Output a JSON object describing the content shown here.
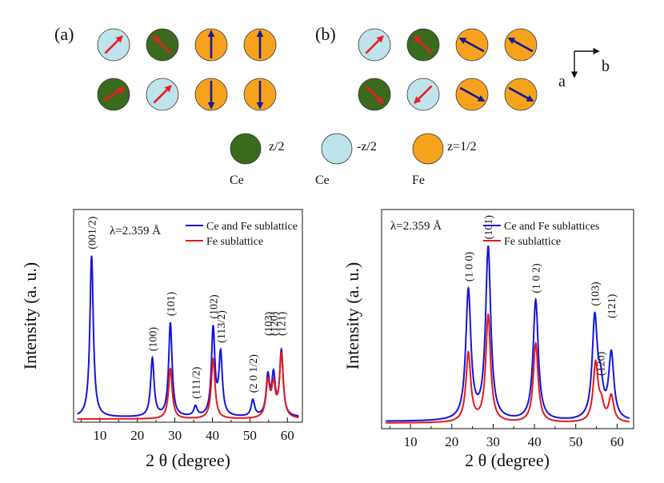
{
  "colors": {
    "ce_up": "#3a6b1c",
    "ce_down": "#bfe3ea",
    "fe": "#f7a21d",
    "ce_arrow": "#ee1c25",
    "fe_arrow": "#1a1a8c",
    "total_curve": "#1414e0",
    "fe_curve": "#e31a1c"
  },
  "structures": {
    "panel_a": {
      "label": "(a)",
      "rows": [
        [
          {
            "atom": "ce_down",
            "arrow": "red",
            "dir": [
              1,
              -1
            ]
          },
          {
            "atom": "ce_up",
            "arrow": "red",
            "dir": [
              -1,
              -1
            ]
          },
          {
            "atom": "fe",
            "arrow": "blue",
            "dir": [
              0,
              -1
            ]
          },
          {
            "atom": "fe",
            "arrow": "blue",
            "dir": [
              0,
              -1
            ]
          }
        ],
        [
          {
            "atom": "ce_up",
            "arrow": "red",
            "dir": [
              1,
              -0.6
            ]
          },
          {
            "atom": "ce_down",
            "arrow": "red",
            "dir": [
              1,
              -1
            ]
          },
          {
            "atom": "fe",
            "arrow": "blue",
            "dir": [
              0,
              1
            ]
          },
          {
            "atom": "fe",
            "arrow": "blue",
            "dir": [
              0,
              1
            ]
          }
        ]
      ]
    },
    "panel_b": {
      "label": "(b)",
      "rows": [
        [
          {
            "atom": "ce_down",
            "arrow": "red",
            "dir": [
              1,
              -1
            ]
          },
          {
            "atom": "ce_up",
            "arrow": "red",
            "dir": [
              -1,
              -1
            ]
          },
          {
            "atom": "fe",
            "arrow": "blue",
            "dir": [
              -1,
              -0.55
            ]
          },
          {
            "atom": "fe",
            "arrow": "blue",
            "dir": [
              -1,
              -0.55
            ]
          }
        ],
        [
          {
            "atom": "ce_up",
            "arrow": "red",
            "dir": [
              1,
              1
            ]
          },
          {
            "atom": "ce_down",
            "arrow": "red",
            "dir": [
              -1,
              1
            ]
          },
          {
            "atom": "fe",
            "arrow": "blue",
            "dir": [
              1,
              0.55
            ]
          },
          {
            "atom": "fe",
            "arrow": "blue",
            "dir": [
              1,
              0.55
            ]
          }
        ]
      ]
    },
    "axes_label_a": "a",
    "axes_label_b": "b"
  },
  "legend": [
    {
      "atom": "ce_up",
      "coord": "z/2",
      "element": "Ce"
    },
    {
      "atom": "ce_down",
      "coord": "-z/2",
      "element": "Ce"
    },
    {
      "atom": "fe",
      "coord": "z=1/2",
      "element": "Fe"
    }
  ],
  "chart_data": [
    {
      "type": "line",
      "xlabel": "2 θ (degree)",
      "ylabel": "Intensity (a. u.)",
      "xlim": [
        3,
        64
      ],
      "xticks": [
        10,
        20,
        30,
        40,
        50,
        60
      ],
      "wavelength": "λ=2.359 Å",
      "series": [
        {
          "name": "Ce and Fe sublattice",
          "peaks": [
            [
              7.8,
              1.0
            ],
            [
              24.0,
              0.36
            ],
            [
              28.8,
              0.58
            ],
            [
              35.5,
              0.06
            ],
            [
              40.2,
              0.54
            ],
            [
              42.2,
              0.38
            ],
            [
              50.8,
              0.1
            ],
            [
              54.8,
              0.24
            ],
            [
              56.3,
              0.24
            ],
            [
              58.4,
              0.4
            ]
          ]
        },
        {
          "name": "Fe sublattice",
          "peaks": [
            [
              28.8,
              0.31
            ],
            [
              40.2,
              0.37
            ],
            [
              54.8,
              0.22
            ],
            [
              56.3,
              0.19
            ],
            [
              58.4,
              0.39
            ]
          ]
        }
      ],
      "annotations": [
        {
          "label": "(001/2)",
          "x": 7.8
        },
        {
          "label": "(100)",
          "x": 24.0
        },
        {
          "label": "(101)",
          "x": 28.8
        },
        {
          "label": "(111/2)",
          "x": 35.5
        },
        {
          "label": "(102)",
          "x": 40.2
        },
        {
          "label": "(113/2)",
          "x": 42.2
        },
        {
          "label": "(2 0 1/2)",
          "x": 50.8
        },
        {
          "label": "(103)",
          "x": 54.8
        },
        {
          "label": "(120)",
          "x": 56.3
        },
        {
          "label": "(121)",
          "x": 58.4
        }
      ]
    },
    {
      "type": "line",
      "xlabel": "2 θ (degree)",
      "ylabel": "Intensity (a. u.)",
      "xlim": [
        3,
        64
      ],
      "xticks": [
        10,
        20,
        30,
        40,
        50,
        60
      ],
      "wavelength": "λ=2.359 Å",
      "series": [
        {
          "name": "Ce and Fe sublattices",
          "peaks": [
            [
              24.0,
              0.75
            ],
            [
              28.8,
              1.0
            ],
            [
              40.3,
              0.7
            ],
            [
              54.6,
              0.58
            ],
            [
              56.0,
              0.17
            ],
            [
              58.6,
              0.38
            ]
          ]
        },
        {
          "name": "Fe sublattice",
          "peaks": [
            [
              24.0,
              0.4
            ],
            [
              28.8,
              0.62
            ],
            [
              40.3,
              0.46
            ],
            [
              54.8,
              0.34
            ],
            [
              56.2,
              0.09
            ],
            [
              58.6,
              0.15
            ]
          ]
        }
      ],
      "annotations": [
        {
          "label": "(1 0 0)",
          "x": 24.0
        },
        {
          "label": "(101)",
          "x": 28.8
        },
        {
          "label": "(1 0 2)",
          "x": 40.3
        },
        {
          "label": "(103)",
          "x": 54.6
        },
        {
          "label": "(120)",
          "x": 56.0
        },
        {
          "label": "(121)",
          "x": 58.6
        }
      ]
    }
  ]
}
